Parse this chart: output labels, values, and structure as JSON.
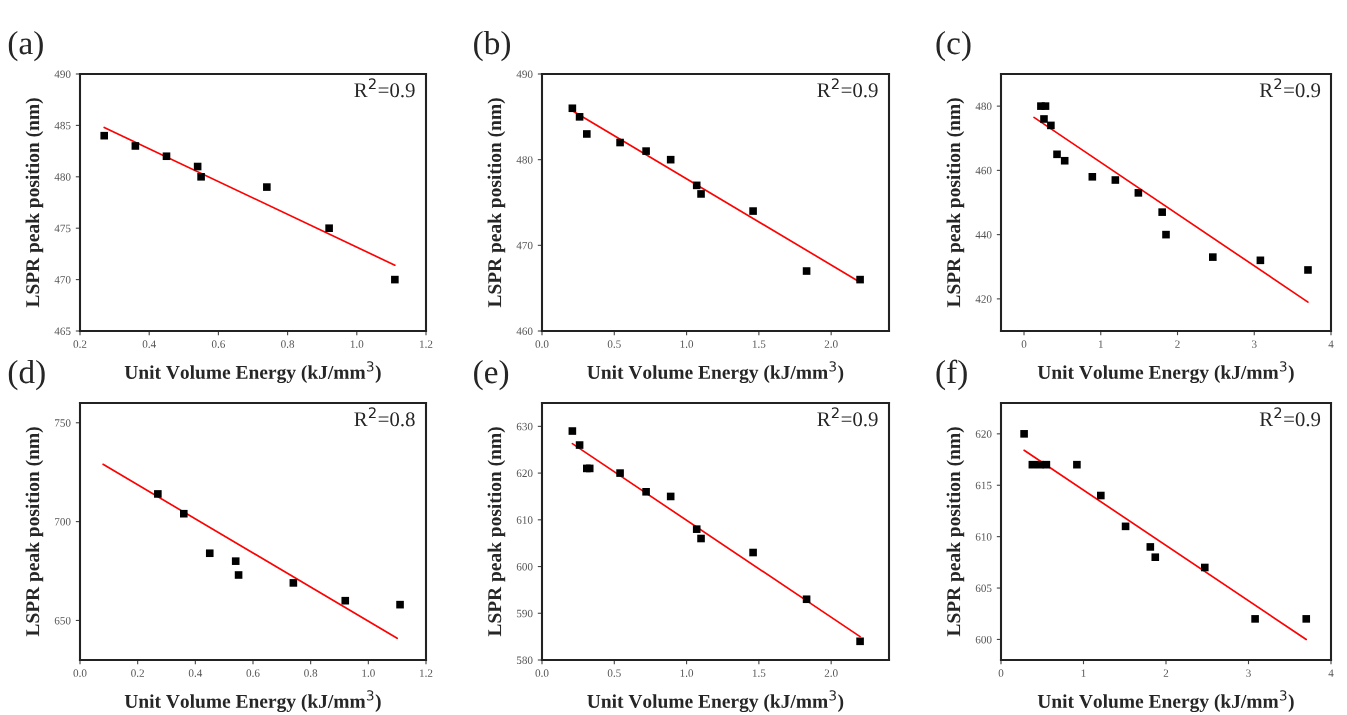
{
  "chart_data": [
    {
      "type": "scatter",
      "title": "(a)",
      "xlabel": "Unit Volume Energy (kJ/mm$^{3}$)",
      "ylabel": "LSPR peak position (nm)",
      "annotations": [
        "R$^{2}$=0.9"
      ],
      "xlim": [
        0.2,
        1.2
      ],
      "xticks": [
        0.2,
        0.4,
        0.6,
        0.8,
        {
          "value": 1,
          "label": "1.0"
        },
        1.2
      ],
      "ylim": [
        465,
        490
      ],
      "yticks": [
        465,
        470,
        475,
        480,
        485,
        490
      ],
      "grid": false,
      "legend": false,
      "series": [
        {
          "marker": "square",
          "color": "#000000",
          "x": [
            0.27,
            0.36,
            0.45,
            0.54,
            0.55,
            0.74,
            0.92,
            1.11
          ],
          "values": [
            484,
            483,
            482,
            481,
            480,
            479,
            475,
            470
          ]
        },
        {
          "type": "line",
          "color": "#ff0000",
          "line_style": "solid",
          "x": [
            0.27,
            1.11
          ],
          "values": [
            484.8,
            471.4
          ]
        }
      ]
    },
    {
      "type": "scatter",
      "title": "(b)",
      "xlabel": "Unit Volume Energy (kJ/mm$^{3}$)",
      "ylabel": "LSPR peak position (nm)",
      "annotations": [
        "R$^{2}$=0.9"
      ],
      "xlim": [
        0,
        2.4
      ],
      "xticks": [
        {
          "value": 0,
          "label": "0.0"
        },
        0.5,
        {
          "value": 1,
          "label": "1.0"
        },
        1.5,
        {
          "value": 2,
          "label": "2.0"
        }
      ],
      "ylim": [
        460,
        490
      ],
      "yticks": [
        460,
        470,
        480,
        490
      ],
      "grid": false,
      "legend": false,
      "series": [
        {
          "marker": "square",
          "color": "#000000",
          "x": [
            0.21,
            0.26,
            0.31,
            0.54,
            0.72,
            0.89,
            1.07,
            1.1,
            1.46,
            1.83,
            2.2
          ],
          "values": [
            486,
            485,
            483,
            482,
            481,
            480,
            477,
            476,
            474,
            467,
            466
          ]
        },
        {
          "type": "line",
          "color": "#ff0000",
          "line_style": "solid",
          "x": [
            0.21,
            2.2
          ],
          "values": [
            485.7,
            465.7
          ]
        }
      ]
    },
    {
      "type": "scatter",
      "title": "(c)",
      "xlabel": "Unit Volume Energy (kJ/mm$^{3}$)",
      "ylabel": "LSPR peak position (nm)",
      "annotations": [
        "R$^{2}$=0.9"
      ],
      "xlim": [
        -0.3,
        4
      ],
      "xticks": [
        0,
        1,
        2,
        3,
        4
      ],
      "ylim": [
        410,
        490
      ],
      "yticks": [
        420,
        440,
        460,
        480
      ],
      "grid": false,
      "legend": false,
      "series": [
        {
          "marker": "square",
          "color": "#000000",
          "x": [
            0.22,
            0.28,
            0.26,
            0.35,
            0.43,
            0.53,
            0.89,
            1.19,
            1.49,
            1.8,
            1.85,
            2.46,
            3.08,
            3.7
          ],
          "values": [
            480,
            480,
            476,
            474,
            465,
            463,
            458,
            457,
            453,
            447,
            440,
            433,
            432,
            429
          ]
        },
        {
          "type": "line",
          "color": "#ff0000",
          "line_style": "solid",
          "x": [
            0.13,
            3.7
          ],
          "values": [
            476.5,
            419
          ]
        }
      ]
    },
    {
      "type": "scatter",
      "title": "(d)",
      "xlabel": "Unit Volume Energy (kJ/mm$^{3}$)",
      "ylabel": "LSPR peak position (nm)",
      "annotations": [
        "R$^{2}$=0.8"
      ],
      "xlim": [
        0,
        1.2
      ],
      "xticks": [
        {
          "value": 0,
          "label": "0.0"
        },
        0.2,
        0.4,
        0.6,
        0.8,
        {
          "value": 1,
          "label": "1.0"
        },
        1.2
      ],
      "ylim": [
        630,
        760
      ],
      "yticks": [
        650,
        700,
        750
      ],
      "grid": false,
      "legend": false,
      "series": [
        {
          "marker": "square",
          "color": "#000000",
          "x": [
            0.27,
            0.36,
            0.45,
            0.54,
            0.55,
            0.74,
            0.92,
            1.11
          ],
          "values": [
            714,
            704,
            684,
            680,
            673,
            669,
            660,
            658
          ]
        },
        {
          "type": "line",
          "color": "#ff0000",
          "line_style": "solid",
          "x": [
            0.08,
            1.1
          ],
          "values": [
            729,
            641
          ]
        }
      ]
    },
    {
      "type": "scatter",
      "title": "(e)",
      "xlabel": "Unit Volume Energy (kJ/mm$^{3}$)",
      "ylabel": "LSPR peak position (nm)",
      "annotations": [
        "R$^{2}$=0.9"
      ],
      "xlim": [
        0,
        2.4
      ],
      "xticks": [
        {
          "value": 0,
          "label": "0.0"
        },
        0.5,
        {
          "value": 1,
          "label": "1.0"
        },
        1.5,
        {
          "value": 2,
          "label": "2.0"
        }
      ],
      "ylim": [
        580,
        635
      ],
      "yticks": [
        580,
        590,
        600,
        610,
        620,
        630
      ],
      "grid": false,
      "legend": false,
      "series": [
        {
          "marker": "square",
          "color": "#000000",
          "x": [
            0.21,
            0.26,
            0.31,
            0.33,
            0.54,
            0.72,
            0.89,
            1.07,
            1.1,
            1.46,
            1.83,
            2.2
          ],
          "values": [
            629,
            626,
            621,
            621,
            620,
            616,
            615,
            608,
            606,
            603,
            593,
            584
          ]
        },
        {
          "type": "line",
          "color": "#ff0000",
          "line_style": "solid",
          "x": [
            0.21,
            2.2
          ],
          "values": [
            626.3,
            585
          ]
        }
      ]
    },
    {
      "type": "scatter",
      "title": "(f)",
      "xlabel": "Unit Volume Energy (kJ/mm$^{3}$)",
      "ylabel": "LSPR peak position (nm)",
      "annotations": [
        "R$^{2}$=0.9"
      ],
      "xlim": [
        0,
        4
      ],
      "xticks": [
        0,
        1,
        2,
        3,
        4
      ],
      "ylim": [
        598,
        623
      ],
      "yticks": [
        600,
        605,
        610,
        615,
        620
      ],
      "grid": false,
      "legend": false,
      "series": [
        {
          "marker": "square",
          "color": "#000000",
          "x": [
            0.28,
            0.38,
            0.47,
            0.55,
            0.92,
            1.21,
            1.51,
            1.81,
            1.87,
            2.47,
            3.08,
            3.7
          ],
          "values": [
            620,
            617,
            617,
            617,
            617,
            614,
            611,
            609,
            608,
            607,
            602,
            602
          ]
        },
        {
          "type": "line",
          "color": "#ff0000",
          "line_style": "solid",
          "x": [
            0.28,
            3.7
          ],
          "values": [
            618.4,
            600
          ]
        }
      ]
    }
  ]
}
